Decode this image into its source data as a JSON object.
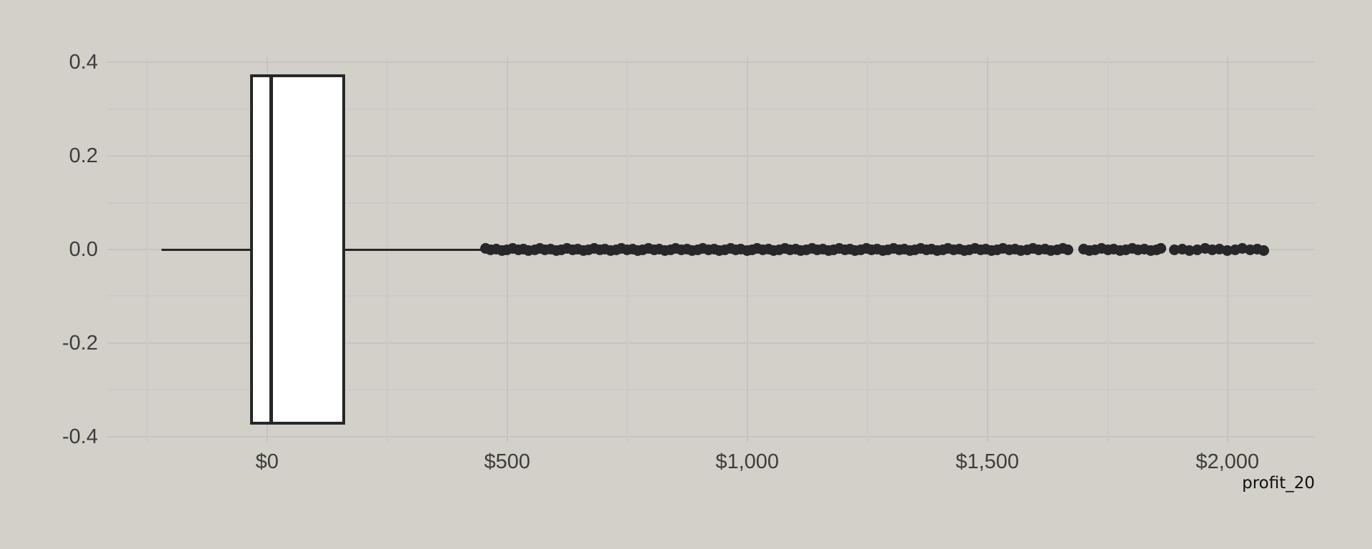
{
  "figure": {
    "background": "#d3cfc9",
    "ink_color": "#272727",
    "box_fill": "#ffffff",
    "grid_major_color": "#c5c4c1",
    "grid_minor_color": "#cbcac7",
    "tick_label_color": "#3d3d3d",
    "axis_title_color": "#0f0f0f"
  },
  "chart_data": {
    "type": "boxplot",
    "orientation": "horizontal",
    "title": "",
    "xlabel": "profit_20",
    "ylabel": "",
    "grid": true,
    "legend": false,
    "xlim": [
      -333,
      2182
    ],
    "ylim": [
      -0.4125,
      0.4125
    ],
    "x_ticks": [
      {
        "value": 0,
        "label": "$0"
      },
      {
        "value": 500,
        "label": "$500"
      },
      {
        "value": 1000,
        "label": "$1,000"
      },
      {
        "value": 1500,
        "label": "$1,500"
      },
      {
        "value": 2000,
        "label": "$2,000"
      }
    ],
    "x_minor_ticks": [
      -250,
      250,
      750,
      1250,
      1750
    ],
    "y_ticks": [
      {
        "value": 0.4,
        "label": "0.4"
      },
      {
        "value": 0.2,
        "label": "0.2"
      },
      {
        "value": 0.0,
        "label": "0.0"
      },
      {
        "value": -0.2,
        "label": "-0.2"
      },
      {
        "value": -0.4,
        "label": "-0.4"
      }
    ],
    "y_minor_ticks": [
      0.3,
      0.1,
      -0.1,
      -0.3
    ],
    "series": [
      {
        "name": "profit_20",
        "center_y": 0,
        "box_half_height": 0.375,
        "whisker_low": -220,
        "q1": -36,
        "median": 9,
        "q3": 162,
        "whisker_high": 450,
        "outliers": [
          455,
          466,
          477,
          489,
          500,
          511,
          523,
          534,
          545,
          557,
          568,
          579,
          590,
          602,
          613,
          625,
          636,
          647,
          659,
          670,
          681,
          693,
          704,
          715,
          727,
          738,
          749,
          761,
          772,
          783,
          795,
          806,
          817,
          829,
          840,
          851,
          863,
          874,
          885,
          897,
          908,
          919,
          931,
          942,
          953,
          965,
          976,
          987,
          999,
          1010,
          1021,
          1033,
          1044,
          1055,
          1067,
          1078,
          1089,
          1101,
          1112,
          1123,
          1135,
          1146,
          1157,
          1169,
          1180,
          1191,
          1203,
          1214,
          1225,
          1237,
          1248,
          1259,
          1271,
          1282,
          1293,
          1305,
          1316,
          1327,
          1339,
          1350,
          1361,
          1373,
          1384,
          1395,
          1407,
          1418,
          1429,
          1441,
          1452,
          1463,
          1475,
          1486,
          1497,
          1509,
          1521,
          1533,
          1546,
          1558,
          1570,
          1583,
          1595,
          1607,
          1620,
          1632,
          1645,
          1657,
          1668,
          1700,
          1713,
          1725,
          1738,
          1751,
          1763,
          1776,
          1789,
          1802,
          1814,
          1827,
          1840,
          1853,
          1861,
          1890,
          1906,
          1921,
          1937,
          1953,
          1968,
          1984,
          2000,
          2016,
          2031,
          2047,
          2062,
          2075
        ]
      }
    ]
  }
}
